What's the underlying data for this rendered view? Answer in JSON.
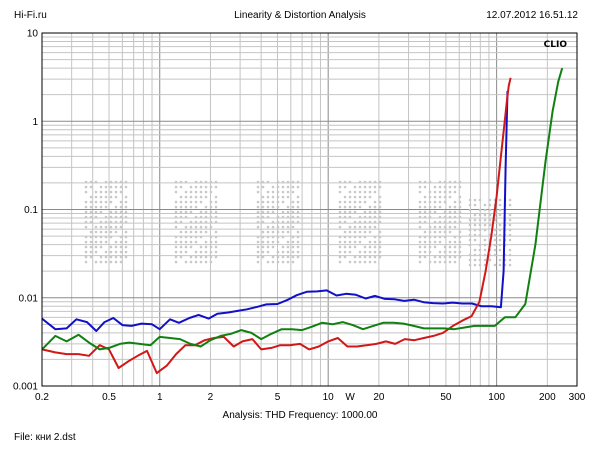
{
  "header": {
    "site": "Hi-Fi.ru",
    "title": "Linearity & Distortion Analysis",
    "datetime": "12.07.2012 16.51.12"
  },
  "footer": {
    "analysis": "Analysis: THD   Frequency: 1000.00",
    "file": "File: кни 2.dst"
  },
  "chart_data": {
    "type": "line",
    "title": "Linearity & Distortion Analysis",
    "badge": "CLIO",
    "x_scale": "log",
    "y_scale": "log",
    "xlim": [
      0.2,
      300
    ],
    "ylim": [
      0.001,
      10
    ],
    "x_ticks": [
      {
        "v": 0.2,
        "label": "0.2"
      },
      {
        "v": 0.5,
        "label": "0.5"
      },
      {
        "v": 1,
        "label": "1"
      },
      {
        "v": 2,
        "label": "2"
      },
      {
        "v": 5,
        "label": "5"
      },
      {
        "v": 10,
        "label": "10"
      },
      {
        "v": 20,
        "label": "20"
      },
      {
        "v": 50,
        "label": "50"
      },
      {
        "v": 100,
        "label": "100"
      },
      {
        "v": 200,
        "label": "200"
      },
      {
        "v": 300,
        "label": "300"
      }
    ],
    "x_unit": {
      "v": 13.5,
      "label": "W"
    },
    "y_ticks": [
      {
        "v": 10,
        "label": "10"
      },
      {
        "v": 1,
        "label": "1"
      },
      {
        "v": 0.1,
        "label": "0.1"
      },
      {
        "v": 0.01,
        "label": "0.01"
      },
      {
        "v": 0.001,
        "label": "0.001"
      }
    ],
    "grid": true,
    "series": [
      {
        "color": "#1010c8",
        "x": [
          0.2,
          0.24,
          0.28,
          0.32,
          0.37,
          0.42,
          0.47,
          0.53,
          0.6,
          0.68,
          0.78,
          0.9,
          1.0,
          1.15,
          1.3,
          1.5,
          1.7,
          1.95,
          2.2,
          2.55,
          2.9,
          3.3,
          3.8,
          4.3,
          5.0,
          5.7,
          6.5,
          7.5,
          8.6,
          9.8,
          11.2,
          12.8,
          14.6,
          16.7,
          19.0,
          21.7,
          24.8,
          28.3,
          32.3,
          36.9,
          42.1,
          48.0,
          54.8,
          62.6,
          71.4,
          81.5,
          93.0,
          100.0,
          106.0,
          110.0,
          113.0,
          116.0
        ],
        "y": [
          0.0058,
          0.0044,
          0.0045,
          0.0057,
          0.0053,
          0.0042,
          0.0053,
          0.0059,
          0.0049,
          0.0048,
          0.0051,
          0.005,
          0.0044,
          0.0057,
          0.0052,
          0.0059,
          0.0064,
          0.0058,
          0.0066,
          0.0068,
          0.0071,
          0.0074,
          0.0079,
          0.0084,
          0.0085,
          0.0094,
          0.0107,
          0.0117,
          0.0118,
          0.0121,
          0.0106,
          0.0111,
          0.0108,
          0.0098,
          0.0105,
          0.0097,
          0.0096,
          0.0092,
          0.0095,
          0.0089,
          0.0087,
          0.0086,
          0.0088,
          0.0086,
          0.0086,
          0.008,
          0.008,
          0.0079,
          0.0078,
          0.02,
          0.3,
          2.2
        ]
      },
      {
        "color": "#d01818",
        "x": [
          0.2,
          0.24,
          0.28,
          0.33,
          0.38,
          0.44,
          0.5,
          0.57,
          0.65,
          0.74,
          0.84,
          0.96,
          1.1,
          1.25,
          1.42,
          1.62,
          1.85,
          2.1,
          2.4,
          2.75,
          3.1,
          3.55,
          4.0,
          4.6,
          5.2,
          5.9,
          6.8,
          7.7,
          8.8,
          10.0,
          11.4,
          13.0,
          14.8,
          16.9,
          19.3,
          22.0,
          25.0,
          28.5,
          32.5,
          37.0,
          42.2,
          48.0,
          55.0,
          62.5,
          71.0,
          79.0,
          86.0,
          93.0,
          100.0,
          106.0,
          111.0,
          115.0,
          118.0,
          121.0
        ],
        "y": [
          0.0026,
          0.0024,
          0.0023,
          0.0023,
          0.0022,
          0.0029,
          0.0026,
          0.0016,
          0.0019,
          0.0022,
          0.0025,
          0.0014,
          0.0017,
          0.0023,
          0.0029,
          0.0029,
          0.0033,
          0.0035,
          0.0036,
          0.0028,
          0.0032,
          0.0034,
          0.0026,
          0.0027,
          0.0029,
          0.0029,
          0.003,
          0.0026,
          0.0028,
          0.0032,
          0.0035,
          0.0028,
          0.0028,
          0.0029,
          0.003,
          0.0032,
          0.003,
          0.0034,
          0.0033,
          0.0035,
          0.0037,
          0.004,
          0.0048,
          0.0055,
          0.0062,
          0.009,
          0.02,
          0.05,
          0.14,
          0.4,
          0.9,
          1.7,
          2.5,
          3.1
        ]
      },
      {
        "color": "#108010",
        "x": [
          0.2,
          0.24,
          0.28,
          0.33,
          0.38,
          0.44,
          0.5,
          0.58,
          0.66,
          0.76,
          0.88,
          1.0,
          1.15,
          1.32,
          1.52,
          1.75,
          2.0,
          2.3,
          2.65,
          3.05,
          3.5,
          4.0,
          4.6,
          5.3,
          6.1,
          7.0,
          8.0,
          9.2,
          10.6,
          12.2,
          14.0,
          16.1,
          18.5,
          21.2,
          24.4,
          28.0,
          32.2,
          37.0,
          42.5,
          48.8,
          56.0,
          64.5,
          74.0,
          85.0,
          97.5,
          112.0,
          129.0,
          148.0,
          170.0,
          195.0,
          215.0,
          232.0,
          245.0
        ],
        "y": [
          0.0026,
          0.0037,
          0.0032,
          0.0038,
          0.0031,
          0.0026,
          0.0027,
          0.003,
          0.0031,
          0.003,
          0.0029,
          0.0036,
          0.0035,
          0.0034,
          0.003,
          0.0028,
          0.0033,
          0.0037,
          0.0039,
          0.0043,
          0.004,
          0.0034,
          0.0039,
          0.0044,
          0.0044,
          0.0043,
          0.0047,
          0.0052,
          0.005,
          0.0053,
          0.0049,
          0.0044,
          0.0048,
          0.0052,
          0.0052,
          0.0051,
          0.0048,
          0.0045,
          0.0045,
          0.0045,
          0.0044,
          0.0046,
          0.0048,
          0.0048,
          0.0048,
          0.006,
          0.006,
          0.0085,
          0.04,
          0.35,
          1.3,
          2.8,
          4.0
        ]
      }
    ]
  }
}
